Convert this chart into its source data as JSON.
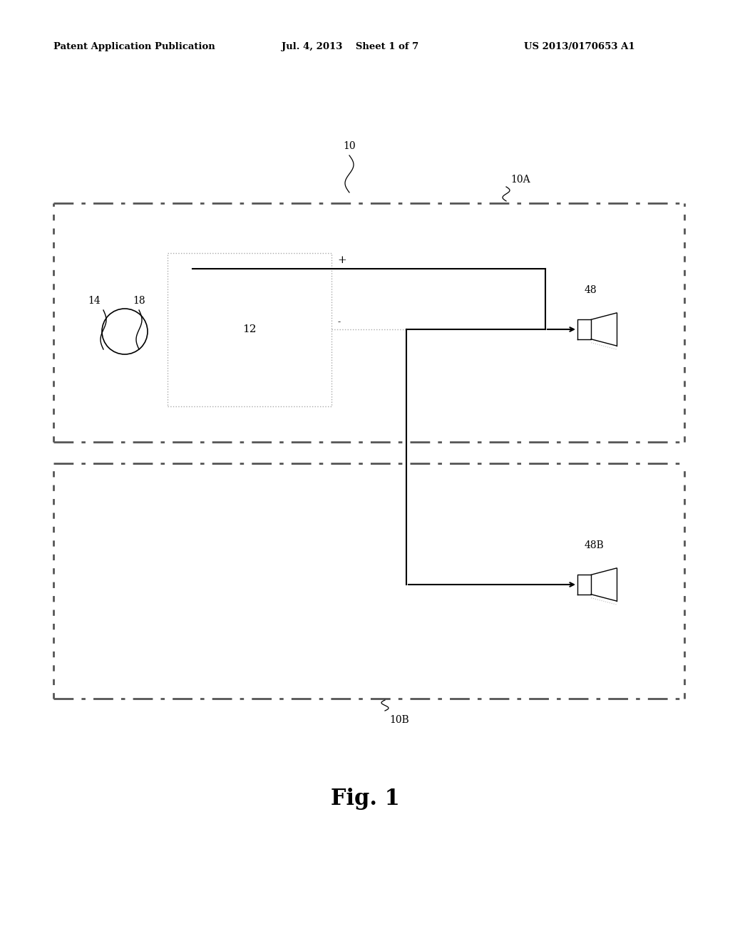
{
  "bg_color": "#ffffff",
  "header_left": "Patent Application Publication",
  "header_mid": "Jul. 4, 2013    Sheet 1 of 7",
  "header_right": "US 2013/0170653 A1",
  "fig_label": "Fig. 1",
  "label_10": "10",
  "label_10A": "10A",
  "label_10B": "10B",
  "label_12": "12",
  "label_14": "14",
  "label_18": "18",
  "label_48": "48",
  "label_48B": "48B",
  "plus_sign": "+",
  "minus_sign": "-",
  "text_color": "#000000",
  "line_color": "#000000",
  "dash_color": "#666666",
  "light_color": "#aaaaaa"
}
